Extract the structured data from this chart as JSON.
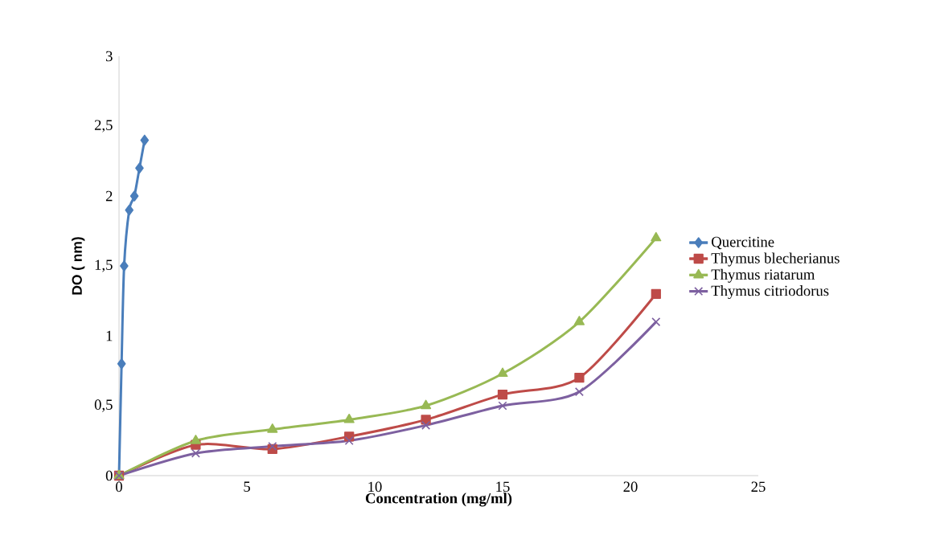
{
  "chart_data": {
    "type": "line",
    "xlabel": "Concentration (mg/ml)",
    "ylabel": "DO ( nm)",
    "xlim": [
      0,
      25
    ],
    "ylim": [
      0,
      3
    ],
    "xticks": [
      0,
      5,
      10,
      15,
      20,
      25
    ],
    "yticks": [
      0,
      {
        "value": 0.5,
        "label": "0,5"
      },
      1,
      {
        "value": 1.5,
        "label": "1,5"
      },
      2,
      {
        "value": 2.5,
        "label": "2,5"
      },
      3
    ],
    "legend": "right",
    "line_style": "solid",
    "series": [
      {
        "name": "Quercitine",
        "color": "#4a7ebb",
        "marker": "diamond",
        "x": [
          0,
          0.1,
          0.2,
          0.4,
          0.6,
          0.8,
          1.0
        ],
        "values": [
          0,
          0.8,
          1.5,
          1.9,
          2.0,
          2.2,
          2.4
        ]
      },
      {
        "name": "Thymus blecherianus",
        "color": "#be4b48",
        "marker": "square",
        "x": [
          0,
          3,
          6,
          9,
          12,
          15,
          18,
          21
        ],
        "values": [
          0,
          0.22,
          0.19,
          0.28,
          0.4,
          0.58,
          0.7,
          1.3
        ]
      },
      {
        "name": "Thymus riatarum",
        "color": "#98b954",
        "marker": "triangle",
        "x": [
          0,
          3,
          6,
          9,
          12,
          15,
          18,
          21
        ],
        "values": [
          0,
          0.25,
          0.33,
          0.4,
          0.5,
          0.73,
          1.1,
          1.7
        ]
      },
      {
        "name": "Thymus citriodorus",
        "color": "#7d60a0",
        "marker": "cross",
        "x": [
          0,
          3,
          6,
          9,
          12,
          15,
          18,
          21
        ],
        "values": [
          0,
          0.16,
          0.21,
          0.25,
          0.36,
          0.5,
          0.6,
          1.1
        ]
      }
    ]
  }
}
